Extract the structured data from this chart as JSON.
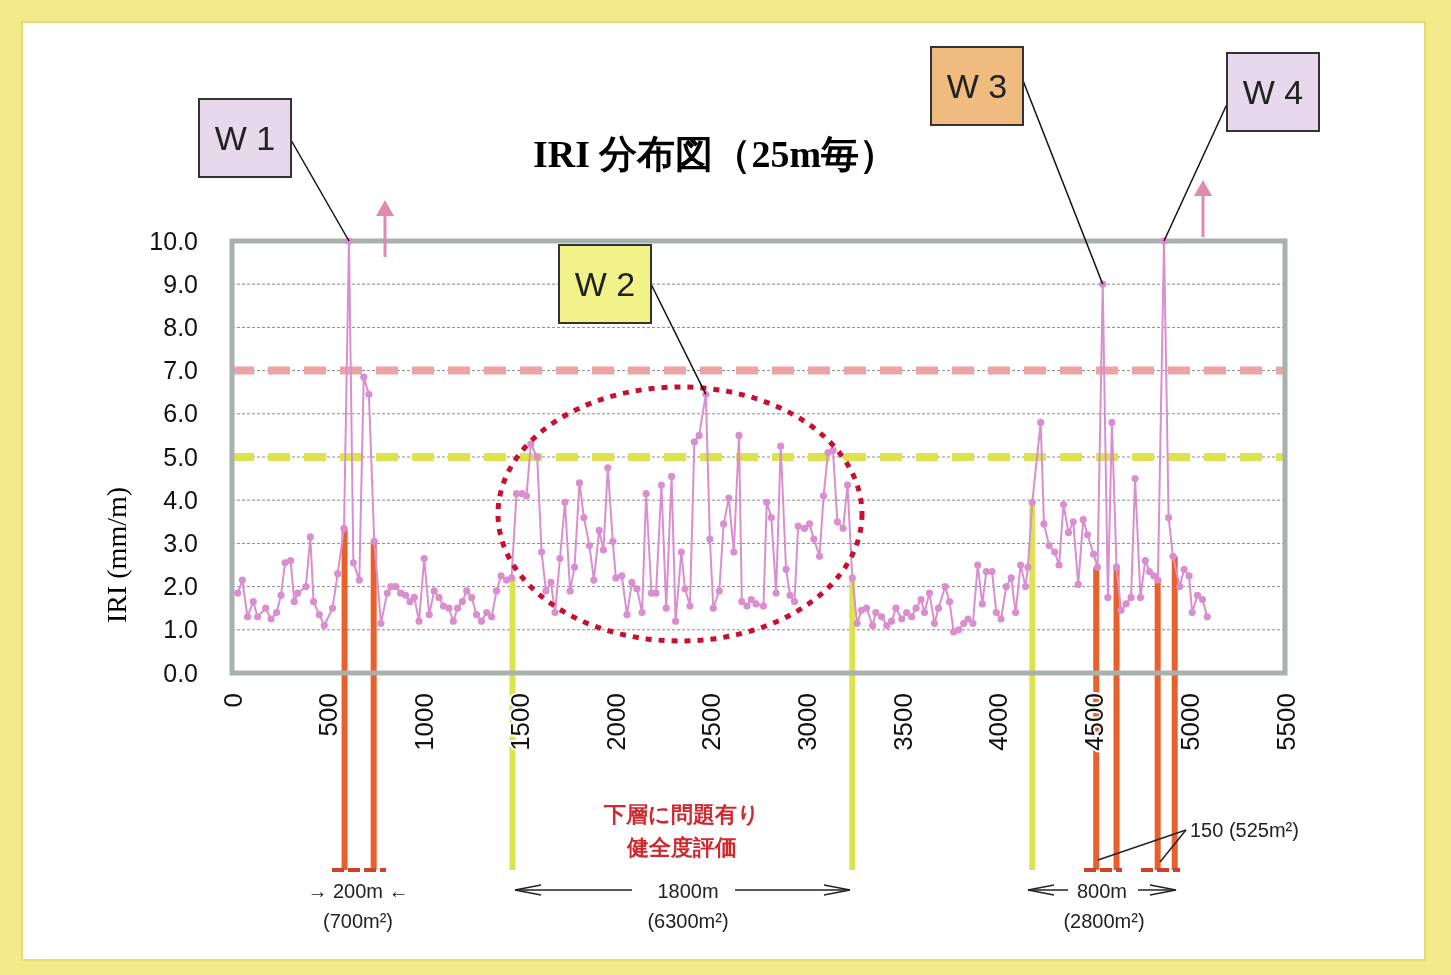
{
  "chart_data": {
    "type": "line",
    "title": "IRI 分布図（25m毎）",
    "ylabel": "IRI (mm/m)",
    "xlim": [
      0,
      5500
    ],
    "xticks": [
      0,
      500,
      1000,
      1500,
      2000,
      2500,
      3000,
      3500,
      4000,
      4500,
      5000,
      5500
    ],
    "ylim": [
      0,
      10
    ],
    "yticks": [
      {
        "value": 0,
        "label": "0.0"
      },
      {
        "value": 1,
        "label": "1.0"
      },
      {
        "value": 2,
        "label": "2.0"
      },
      {
        "value": 3,
        "label": "3.0"
      },
      {
        "value": 4,
        "label": "4.0"
      },
      {
        "value": 5,
        "label": "5.0"
      },
      {
        "value": 6,
        "label": "6.0"
      },
      {
        "value": 7,
        "label": "7.0"
      },
      {
        "value": 8,
        "label": "8.0"
      },
      {
        "value": 9,
        "label": "9.0"
      },
      {
        "value": 10,
        "label": "10.0"
      }
    ],
    "grid": "y",
    "marker": "circle",
    "line_style": "solid",
    "series": [
      {
        "color": "#d98fcf",
        "x": [
          30,
          54,
          81,
          111,
          134,
          176,
          204,
          233,
          256,
          277,
          306,
          325,
          343,
          386,
          409,
          426,
          456,
          482,
          525,
          552,
          585,
          611,
          634,
          665,
          688,
          715,
          743,
          778,
          811,
          830,
          855,
          881,
          907,
          930,
          952,
          977,
          1004,
          1030,
          1056,
          1081,
          1104,
          1133,
          1156,
          1178,
          1203,
          1226,
          1252,
          1277,
          1303,
          1330,
          1356,
          1382,
          1405,
          1434,
          1460,
          1486,
          1515,
          1538,
          1561,
          1594,
          1617,
          1640,
          1666,
          1687,
          1713,
          1739,
          1766,
          1789,
          1815,
          1838,
          1867,
          1890,
          1918,
          1940,
          1963,
          1989,
          2005,
          2036,
          2063,
          2089,
          2115,
          2142,
          2163,
          2191,
          2215,
          2243,
          2268,
          2296,
          2317,
          2347,
          2366,
          2392,
          2415,
          2440,
          2475,
          2496,
          2514,
          2545,
          2568,
          2595,
          2621,
          2648,
          2663,
          2690,
          2712,
          2737,
          2776,
          2793,
          2817,
          2842,
          2866,
          2894,
          2915,
          2938,
          2957,
          2990,
          3016,
          3039,
          3069,
          3090,
          3113,
          3139,
          3162,
          3192,
          3215,
          3240,
          3265,
          3288,
          3314,
          3346,
          3363,
          3393,
          3420,
          3445,
          3468,
          3498,
          3524,
          3550,
          3573,
          3599,
          3617,
          3643,
          3669,
          3690,
          3725,
          3748,
          3769,
          3795,
          3822,
          3844,
          3870,
          3895,
          3919,
          3940,
          3970,
          3992,
          4017,
          4044,
          4070,
          4093,
          4119,
          4145,
          4157,
          4180,
          4224,
          4241,
          4268,
          4297,
          4320,
          4343,
          4369,
          4394,
          4420,
          4446,
          4469,
          4500,
          4521,
          4548,
          4575,
          4596,
          4620,
          4644,
          4670,
          4696,
          4717,
          4745,
          4770,
          4792,
          4815,
          4836,
          4868,
          4892,
          4915,
          4950,
          4973,
          4999,
          5015,
          5043,
          5069,
          5094
        ],
        "values": [
          1.85,
          2.15,
          1.3,
          1.65,
          1.3,
          1.5,
          1.25,
          1.4,
          1.8,
          2.55,
          2.6,
          1.65,
          1.85,
          2.0,
          3.15,
          1.65,
          1.35,
          1.1,
          1.5,
          2.3,
          3.35,
          10.0,
          2.55,
          2.15,
          6.85,
          6.45,
          3.05,
          1.15,
          1.85,
          2.0,
          2.0,
          1.85,
          1.8,
          1.65,
          1.75,
          1.2,
          2.65,
          1.35,
          1.9,
          1.75,
          1.55,
          1.5,
          1.2,
          1.5,
          1.65,
          1.9,
          1.75,
          1.35,
          1.2,
          1.4,
          1.3,
          1.9,
          2.25,
          2.15,
          2.2,
          4.15,
          4.15,
          4.1,
          5.3,
          5.0,
          2.8,
          1.9,
          2.1,
          1.4,
          2.65,
          3.95,
          1.9,
          2.45,
          4.4,
          3.6,
          2.95,
          2.15,
          3.3,
          2.85,
          4.75,
          3.05,
          2.2,
          2.25,
          1.35,
          2.1,
          1.95,
          1.4,
          4.15,
          1.85,
          1.85,
          4.35,
          1.5,
          4.55,
          1.2,
          2.8,
          1.95,
          1.55,
          5.35,
          5.5,
          6.45,
          3.1,
          1.5,
          1.9,
          3.45,
          4.05,
          2.8,
          5.5,
          1.65,
          1.55,
          1.7,
          1.6,
          1.55,
          3.95,
          3.6,
          1.85,
          5.25,
          2.4,
          1.8,
          1.65,
          3.4,
          3.35,
          3.45,
          3.1,
          2.7,
          4.1,
          5.1,
          5.15,
          3.5,
          3.35,
          4.35,
          2.2,
          1.15,
          1.45,
          1.5,
          1.1,
          1.4,
          1.3,
          1.1,
          1.2,
          1.5,
          1.25,
          1.4,
          1.3,
          1.5,
          1.7,
          1.4,
          1.85,
          1.15,
          1.5,
          2.0,
          1.65,
          0.95,
          1.0,
          1.15,
          1.25,
          1.15,
          2.5,
          1.6,
          2.35,
          2.35,
          1.4,
          1.25,
          2.0,
          2.2,
          1.4,
          2.5,
          2.0,
          2.45,
          3.95,
          5.8,
          3.45,
          2.95,
          2.8,
          2.5,
          3.9,
          3.25,
          3.5,
          2.05,
          3.55,
          3.2,
          2.75,
          2.45,
          9.0,
          1.75,
          5.8,
          2.45,
          1.45,
          1.6,
          1.75,
          4.5,
          1.75,
          2.6,
          2.35,
          2.25,
          2.15,
          10.0,
          3.6,
          2.7,
          2.0,
          2.4,
          2.25,
          1.4,
          1.8,
          1.7,
          1.3
        ]
      }
    ],
    "ref_lines": [
      {
        "axis": "y",
        "value": 7,
        "color": "#eba3a3",
        "line_style": "dashed"
      },
      {
        "axis": "y",
        "value": 5,
        "color": "#dde34c",
        "line_style": "dashed"
      },
      {
        "axis": "x",
        "value": 588,
        "color": "#e8602c"
      },
      {
        "axis": "x",
        "value": 740,
        "color": "#e8602c"
      },
      {
        "axis": "x",
        "value": 1465,
        "color": "#dde34c"
      },
      {
        "axis": "x",
        "value": 3240,
        "color": "#dde34c"
      },
      {
        "axis": "x",
        "value": 4180,
        "color": "#dde34c"
      },
      {
        "axis": "x",
        "value": 4514,
        "color": "#e8602c"
      },
      {
        "axis": "x",
        "value": 4620,
        "color": "#e8602c"
      },
      {
        "axis": "x",
        "value": 4835,
        "color": "#e8602c"
      },
      {
        "axis": "x",
        "value": 4924,
        "color": "#e8602c"
      }
    ],
    "annotations": [
      {
        "text": "W 1",
        "x": 611,
        "y": 10.0
      },
      {
        "text": "W 2",
        "x": 2475,
        "y": 6.45
      },
      {
        "text": "W 3",
        "x": 4548,
        "y": 9.0
      },
      {
        "text": "W 4",
        "x": 4868,
        "y": 10.0
      },
      "下層に問題有り",
      "健全度評価",
      "→ 200m ←",
      "(700m²)",
      "1800m",
      "(6300m²)",
      "800m",
      "(2800m²)",
      "150 (525m²)"
    ]
  }
}
